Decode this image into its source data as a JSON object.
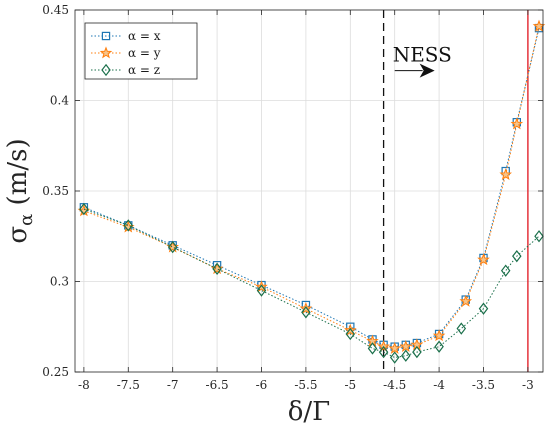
{
  "chart_data": {
    "type": "line",
    "xlabel": "δ/Γ",
    "ylabel_symbol": "σ",
    "ylabel_subscript": "α",
    "ylabel_unit": " (m/s)",
    "xlim": [
      -8.1,
      -2.83
    ],
    "ylim": [
      0.25,
      0.45
    ],
    "xticks": [
      -8,
      -7.5,
      -7,
      -6.5,
      -6,
      -5.5,
      -5,
      -4.5,
      -4,
      -3.5,
      -3
    ],
    "xtick_labels": [
      "-8",
      "-7.5",
      "-7",
      "-6.5",
      "-6",
      "-5.5",
      "-5",
      "-4.5",
      "-4",
      "-3.5",
      "-3"
    ],
    "yticks": [
      0.25,
      0.3,
      0.35,
      0.4,
      0.45
    ],
    "ytick_labels": [
      "0.25",
      "0.3",
      "0.35",
      "0.4",
      "0.45"
    ],
    "grid": true,
    "legend_position": "top-left",
    "series": [
      {
        "name": "α = x",
        "marker": "square",
        "color": "#1f77b4",
        "points": [
          [
            -8,
            0.341
          ],
          [
            -7.5,
            0.331
          ],
          [
            -7,
            0.32
          ],
          [
            -6.5,
            0.309
          ],
          [
            -6,
            0.298
          ],
          [
            -5.5,
            0.287
          ],
          [
            -5,
            0.275
          ],
          [
            -4.75,
            0.268
          ],
          [
            -4.625,
            0.265
          ],
          [
            -4.5,
            0.264
          ],
          [
            -4.375,
            0.265
          ],
          [
            -4.25,
            0.266
          ],
          [
            -4,
            0.271
          ],
          [
            -3.7,
            0.29
          ],
          [
            -3.5,
            0.313
          ],
          [
            -3.25,
            0.361
          ],
          [
            -3.125,
            0.388
          ],
          [
            -2.875,
            0.44
          ]
        ]
      },
      {
        "name": "α = y",
        "marker": "star",
        "color": "#ff7f0e",
        "points": [
          [
            -8,
            0.339
          ],
          [
            -7.5,
            0.33
          ],
          [
            -7,
            0.319
          ],
          [
            -6.5,
            0.307
          ],
          [
            -6,
            0.297
          ],
          [
            -5.5,
            0.285
          ],
          [
            -5,
            0.273
          ],
          [
            -4.75,
            0.267
          ],
          [
            -4.625,
            0.264
          ],
          [
            -4.5,
            0.263
          ],
          [
            -4.375,
            0.264
          ],
          [
            -4.25,
            0.265
          ],
          [
            -4,
            0.27
          ],
          [
            -3.7,
            0.289
          ],
          [
            -3.5,
            0.312
          ],
          [
            -3.25,
            0.359
          ],
          [
            -3.125,
            0.387
          ],
          [
            -2.875,
            0.441
          ]
        ]
      },
      {
        "name": "α = z",
        "marker": "diamond",
        "color": "#1a6f4a",
        "points": [
          [
            -8,
            0.34
          ],
          [
            -7.5,
            0.331
          ],
          [
            -7,
            0.319
          ],
          [
            -6.5,
            0.307
          ],
          [
            -6,
            0.295
          ],
          [
            -5.5,
            0.283
          ],
          [
            -5,
            0.271
          ],
          [
            -4.75,
            0.263
          ],
          [
            -4.625,
            0.261
          ],
          [
            -4.5,
            0.258
          ],
          [
            -4.375,
            0.259
          ],
          [
            -4.25,
            0.261
          ],
          [
            -4,
            0.264
          ],
          [
            -3.75,
            0.274
          ],
          [
            -3.5,
            0.285
          ],
          [
            -3.25,
            0.306
          ],
          [
            -3.125,
            0.314
          ],
          [
            -2.875,
            0.325
          ]
        ]
      }
    ],
    "vlines": [
      {
        "x": -4.625,
        "style": "dashed",
        "color": "#111111"
      },
      {
        "x": -3.0,
        "style": "solid",
        "color": "#e0141e"
      }
    ],
    "annotation": {
      "text": "NESS",
      "x_from": -4.5,
      "x_to": -4.05,
      "y": 0.4165
    }
  }
}
